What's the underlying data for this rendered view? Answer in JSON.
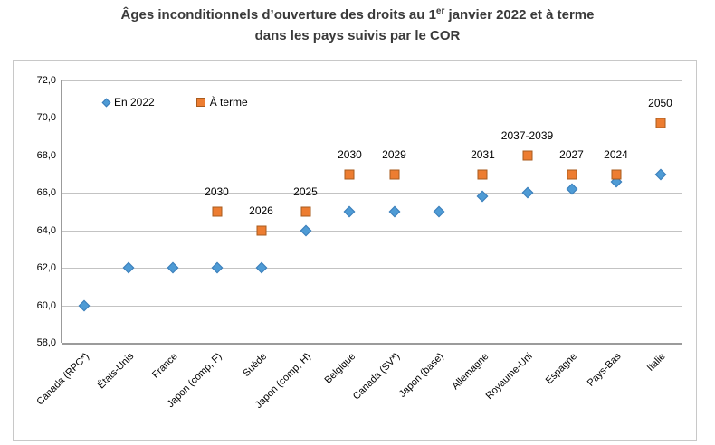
{
  "title": {
    "line1_pre": "Âges inconditionnels d’ouverture des droits au 1",
    "line1_sup": "er",
    "line1_post": " janvier 2022 et à terme",
    "line2": "dans les pays suivis par le COR"
  },
  "colors": {
    "series_2022_fill": "#4E9BD5",
    "series_2022_border": "#3A7CB8",
    "series_terme_fill": "#ED7D31",
    "series_terme_border": "#A85B1E",
    "gridline": "#c3c3c3",
    "axis": "#9b9b9b",
    "title_text": "#3a3a3a"
  },
  "chart_data": {
    "type": "scatter",
    "title": "Âges inconditionnels d’ouverture des droits au 1er janvier 2022 et à terme dans les pays suivis par le COR",
    "categories": [
      "Canada (RPC*)",
      "États-Unis",
      "France",
      "Japon (comp, F)",
      "Suède",
      "Japon (comp, H)",
      "Belgique",
      "Canada (SV*)",
      "Japon (base)",
      "Allemagne",
      "Royaume-Uni",
      "Espagne",
      "Pays-Bas",
      "Italie"
    ],
    "series": [
      {
        "name": "En 2022",
        "marker": "diamond",
        "color": "#4E9BD5",
        "values": [
          60.0,
          62.0,
          62.0,
          62.0,
          62.0,
          64.0,
          65.0,
          65.0,
          65.0,
          65.8,
          66.0,
          66.2,
          66.6,
          67.0
        ]
      },
      {
        "name": "À terme",
        "marker": "square",
        "color": "#ED7D31",
        "values": [
          null,
          null,
          null,
          65.0,
          64.0,
          65.0,
          67.0,
          67.0,
          null,
          67.0,
          68.0,
          67.0,
          67.0,
          69.75
        ],
        "point_labels": [
          null,
          null,
          null,
          "2030",
          "2026",
          "2025",
          "2030",
          "2029",
          null,
          "2031",
          "2037-2039",
          "2027",
          "2024",
          "2050"
        ]
      }
    ],
    "ylim": [
      58,
      72
    ],
    "yticks": [
      {
        "value": 72,
        "label": "72,0"
      },
      {
        "value": 70,
        "label": "70,0"
      },
      {
        "value": 68,
        "label": "68,0"
      },
      {
        "value": 66,
        "label": "66,0"
      },
      {
        "value": 64,
        "label": "64,0"
      },
      {
        "value": 62,
        "label": "62,0"
      },
      {
        "value": 60,
        "label": "60,0"
      },
      {
        "value": 58,
        "label": "58,0"
      }
    ],
    "grid": true,
    "legend_position": "inside-top-left",
    "decimal_separator": ","
  }
}
